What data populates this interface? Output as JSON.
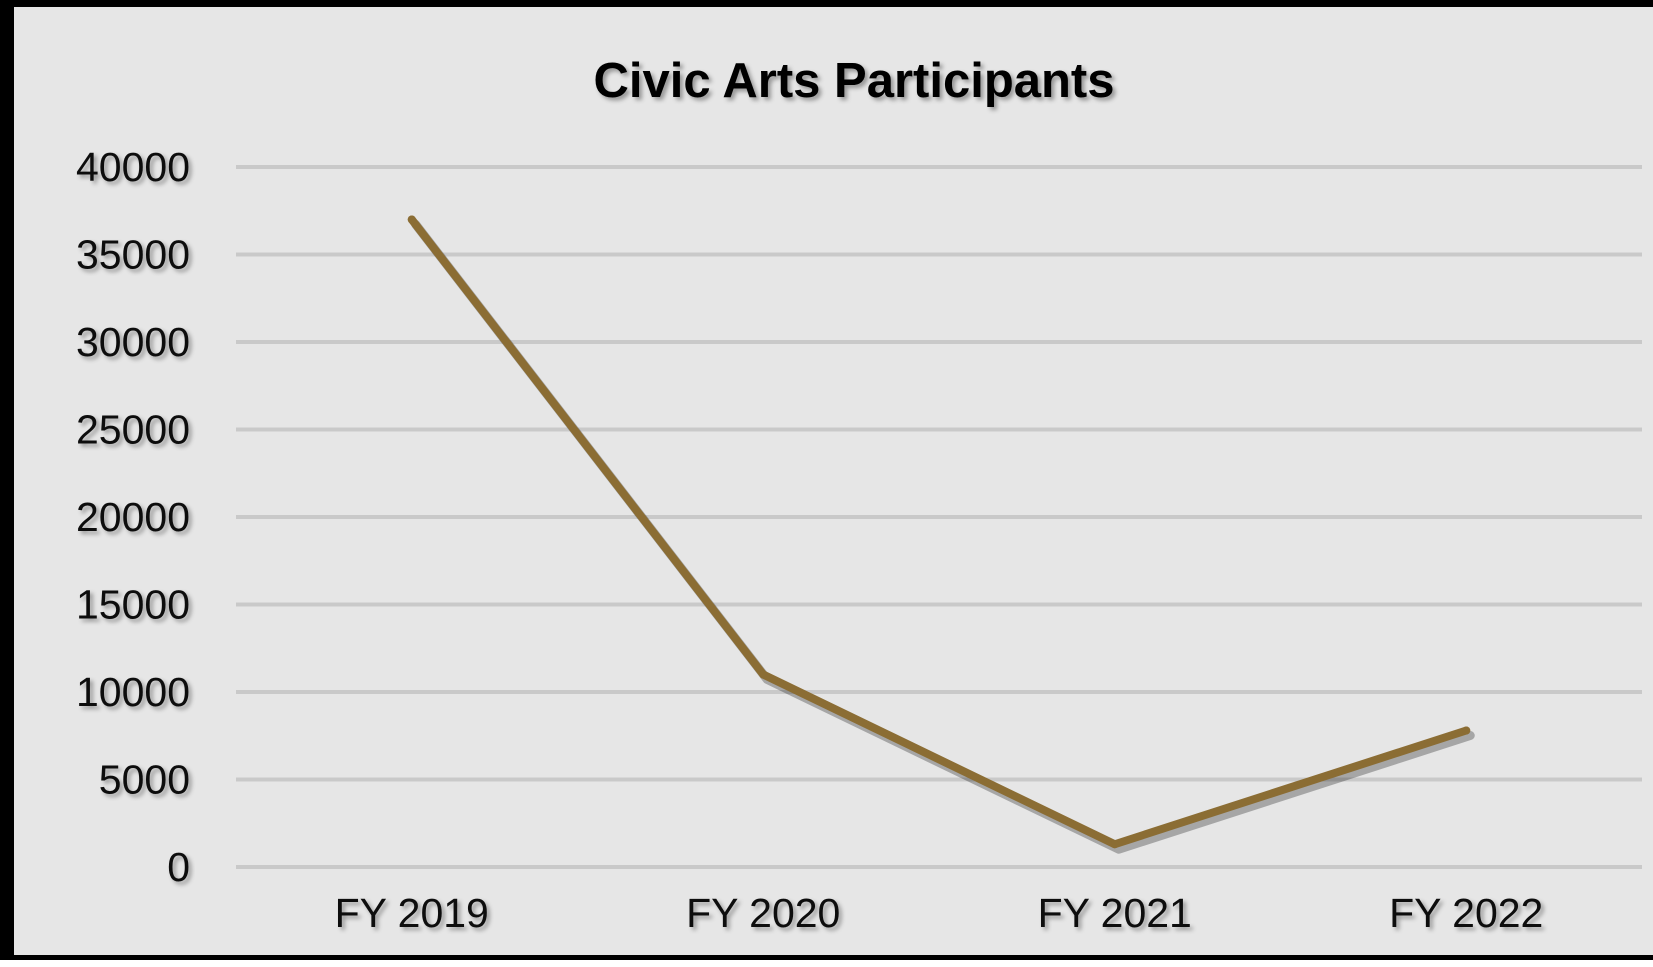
{
  "chart_data": {
    "type": "line",
    "title": "Civic Arts Participants",
    "xlabel": "",
    "ylabel": "",
    "categories": [
      "FY 2019",
      "FY 2020",
      "FY 2021",
      "FY 2022"
    ],
    "series": [
      {
        "values": [
          37000,
          11000,
          1300,
          7800
        ]
      }
    ],
    "ylim": [
      0,
      40000
    ],
    "yticks": [
      "0",
      "5000",
      "10000",
      "15000",
      "20000",
      "25000",
      "30000",
      "35000",
      "40000"
    ],
    "grid": true,
    "legend": "none",
    "colors": {
      "background": "#e6e6e6",
      "border": "#000000",
      "series": "#8b6d34",
      "gridline": "#c9c9c9"
    }
  }
}
